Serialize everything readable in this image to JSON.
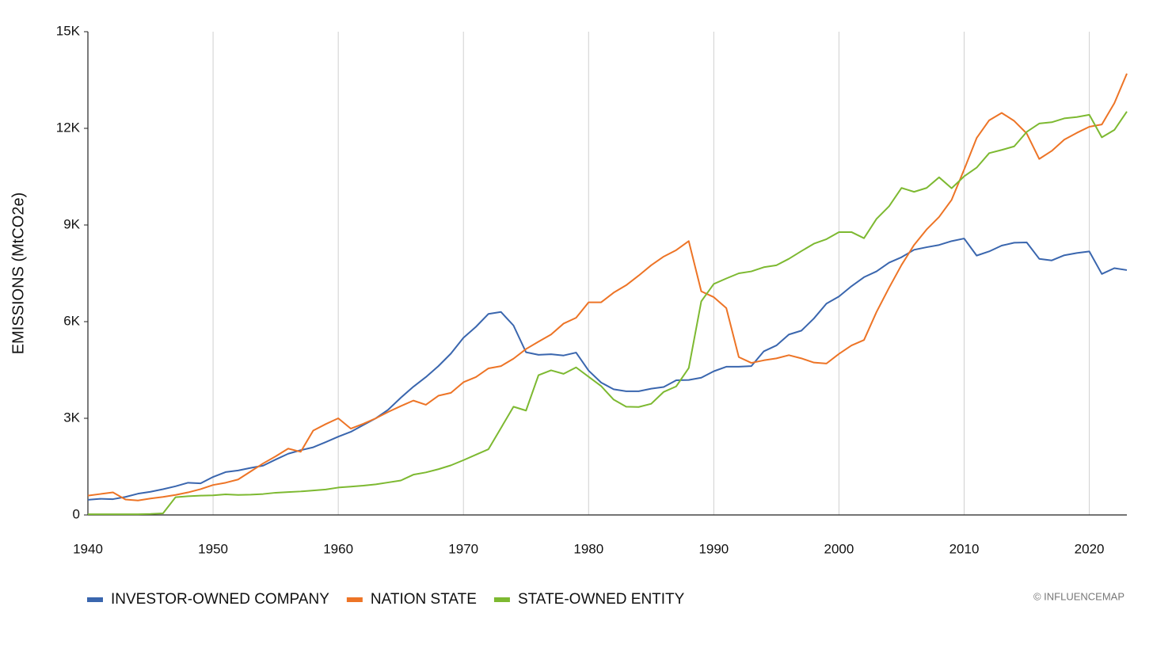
{
  "chart_data": {
    "type": "line",
    "y_label": "EMISSIONS (MtCO2e)",
    "credit": "© INFLUENCEMAP",
    "legend": "bottom-left",
    "grid": "x",
    "xlim": [
      1940,
      2023
    ],
    "xticks": [
      1940,
      1950,
      1960,
      1970,
      1980,
      1990,
      2000,
      2010,
      2020
    ],
    "ylim": [
      0,
      15000
    ],
    "yticks": [
      {
        "value": 0,
        "label": "0"
      },
      {
        "value": 3000,
        "label": "3K"
      },
      {
        "value": 6000,
        "label": "6K"
      },
      {
        "value": 9000,
        "label": "9K"
      },
      {
        "value": 12000,
        "label": "12K"
      },
      {
        "value": 15000,
        "label": "15K"
      }
    ],
    "x": [
      1940,
      1941,
      1942,
      1943,
      1944,
      1945,
      1946,
      1947,
      1948,
      1949,
      1950,
      1951,
      1952,
      1953,
      1954,
      1955,
      1956,
      1957,
      1958,
      1959,
      1960,
      1961,
      1962,
      1963,
      1964,
      1965,
      1966,
      1967,
      1968,
      1969,
      1970,
      1971,
      1972,
      1973,
      1974,
      1975,
      1976,
      1977,
      1978,
      1979,
      1980,
      1981,
      1982,
      1983,
      1984,
      1985,
      1986,
      1987,
      1988,
      1989,
      1990,
      1991,
      1992,
      1993,
      1994,
      1995,
      1996,
      1997,
      1998,
      1999,
      2000,
      2001,
      2002,
      2003,
      2004,
      2005,
      2006,
      2007,
      2008,
      2009,
      2010,
      2011,
      2012,
      2013,
      2014,
      2015,
      2016,
      2017,
      2018,
      2019,
      2020,
      2021,
      2022,
      2023
    ],
    "series": [
      {
        "name": "INVESTOR-OWNED COMPANY",
        "color": "#3a66ae",
        "values": [
          470,
          500,
          490,
          560,
          660,
          720,
          800,
          890,
          1000,
          980,
          1180,
          1330,
          1380,
          1460,
          1530,
          1720,
          1900,
          2010,
          2100,
          2260,
          2430,
          2580,
          2790,
          3000,
          3270,
          3640,
          3980,
          4280,
          4620,
          5010,
          5500,
          5840,
          6240,
          6300,
          5880,
          5050,
          4970,
          4990,
          4950,
          5040,
          4480,
          4110,
          3900,
          3840,
          3840,
          3920,
          3970,
          4180,
          4190,
          4260,
          4460,
          4600,
          4600,
          4620,
          5080,
          5260,
          5600,
          5720,
          6100,
          6560,
          6780,
          7100,
          7380,
          7560,
          7830,
          8000,
          8230,
          8310,
          8380,
          8500,
          8580,
          8050,
          8180,
          8360,
          8450,
          8460,
          7950,
          7900,
          8060,
          8130,
          8180,
          7480,
          7660,
          7600
        ]
      },
      {
        "name": "NATION STATE",
        "color": "#ed7426",
        "values": [
          600,
          650,
          700,
          480,
          450,
          510,
          560,
          620,
          700,
          800,
          930,
          1000,
          1100,
          1350,
          1600,
          1820,
          2060,
          1960,
          2620,
          2820,
          3000,
          2680,
          2830,
          3000,
          3200,
          3380,
          3550,
          3420,
          3700,
          3790,
          4120,
          4280,
          4550,
          4620,
          4850,
          5150,
          5380,
          5600,
          5940,
          6120,
          6600,
          6600,
          6900,
          7130,
          7430,
          7750,
          8020,
          8220,
          8500,
          6940,
          6760,
          6420,
          4900,
          4720,
          4800,
          4860,
          4960,
          4860,
          4730,
          4700,
          5000,
          5260,
          5430,
          6300,
          7050,
          7760,
          8380,
          8860,
          9250,
          9780,
          10720,
          11700,
          12250,
          12480,
          12230,
          11840,
          11050,
          11300,
          11650,
          11860,
          12050,
          12120,
          12780,
          13700
        ]
      },
      {
        "name": "STATE-OWNED ENTITY",
        "color": "#7db931",
        "values": [
          20,
          20,
          20,
          20,
          20,
          30,
          50,
          550,
          580,
          600,
          610,
          640,
          620,
          630,
          650,
          690,
          710,
          730,
          760,
          790,
          850,
          880,
          910,
          950,
          1010,
          1070,
          1250,
          1320,
          1420,
          1540,
          1700,
          1870,
          2040,
          2700,
          3360,
          3240,
          4340,
          4490,
          4380,
          4580,
          4290,
          4000,
          3580,
          3360,
          3350,
          3450,
          3820,
          3990,
          4560,
          6630,
          7170,
          7340,
          7500,
          7560,
          7690,
          7750,
          7950,
          8190,
          8420,
          8560,
          8780,
          8780,
          8590,
          9190,
          9580,
          10150,
          10030,
          10150,
          10480,
          10140,
          10510,
          10780,
          11230,
          11330,
          11440,
          11890,
          12150,
          12190,
          12310,
          12350,
          12420,
          11720,
          11950,
          12520
        ]
      }
    ]
  }
}
